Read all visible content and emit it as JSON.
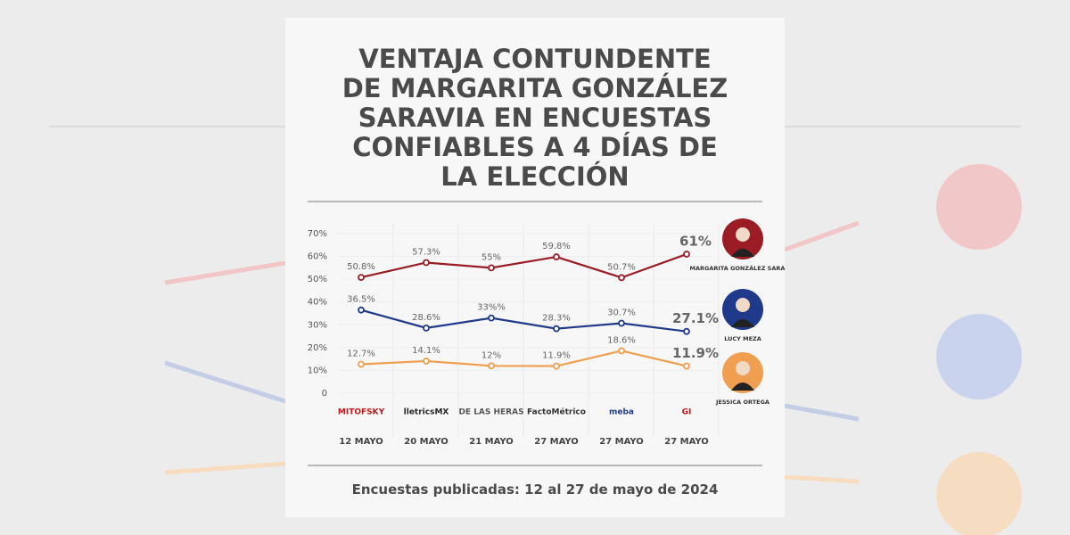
{
  "chart_data": {
    "type": "line",
    "title": "VENTAJA CONTUNDENTE DE MARGARITA GONZÁLEZ SARAVIA EN ENCUESTAS CONFIABLES A 4 DÍAS DE LA ELECCIÓN",
    "categories": [
      "12 MAYO",
      "20 MAYO",
      "21 MAYO",
      "27 MAYO",
      "27 MAYO",
      "27 MAYO"
    ],
    "pollsters": [
      "MITOFSKY",
      "lletricsMX",
      "DE LAS HERAS",
      "FactoMétrico",
      "meba",
      "GI"
    ],
    "ylim": [
      0,
      70
    ],
    "yticks": [
      {
        "value": 0,
        "label": "0"
      },
      {
        "value": 10,
        "label": "10%"
      },
      {
        "value": 20,
        "label": "20%"
      },
      {
        "value": 30,
        "label": "30%"
      },
      {
        "value": 40,
        "label": "40%"
      },
      {
        "value": 50,
        "label": "50%"
      },
      {
        "value": 60,
        "label": "60%"
      },
      {
        "value": 70,
        "label": "70%"
      }
    ],
    "grid": true,
    "series": [
      {
        "name": "MARGARITA GONZÁLEZ SARAVIA",
        "color": "#9b1c24",
        "values": [
          50.8,
          57.3,
          55,
          59.8,
          50.7,
          61
        ],
        "value_labels": [
          "50.8%",
          "57.3%",
          "55%",
          "59.8%",
          "50.7%",
          "61%"
        ]
      },
      {
        "name": "LUCY MEZA",
        "color": "#1f3a8a",
        "values": [
          36.5,
          28.6,
          33,
          28.3,
          30.7,
          27.1
        ],
        "value_labels": [
          "36.5%",
          "28.6%",
          "33%%",
          "28.3%",
          "30.7%",
          "27.1%"
        ]
      },
      {
        "name": "JESSICA ORTEGA",
        "color": "#ef9f4f",
        "values": [
          12.7,
          14.1,
          12,
          11.9,
          18.6,
          11.9
        ],
        "value_labels": [
          "12.7%",
          "14.1%",
          "12%",
          "11.9%",
          "18.6%",
          "11.9%"
        ]
      }
    ],
    "footer_label": "Encuestas publicadas:",
    "footer_dates": "12 al 27 de mayo de 2024"
  }
}
